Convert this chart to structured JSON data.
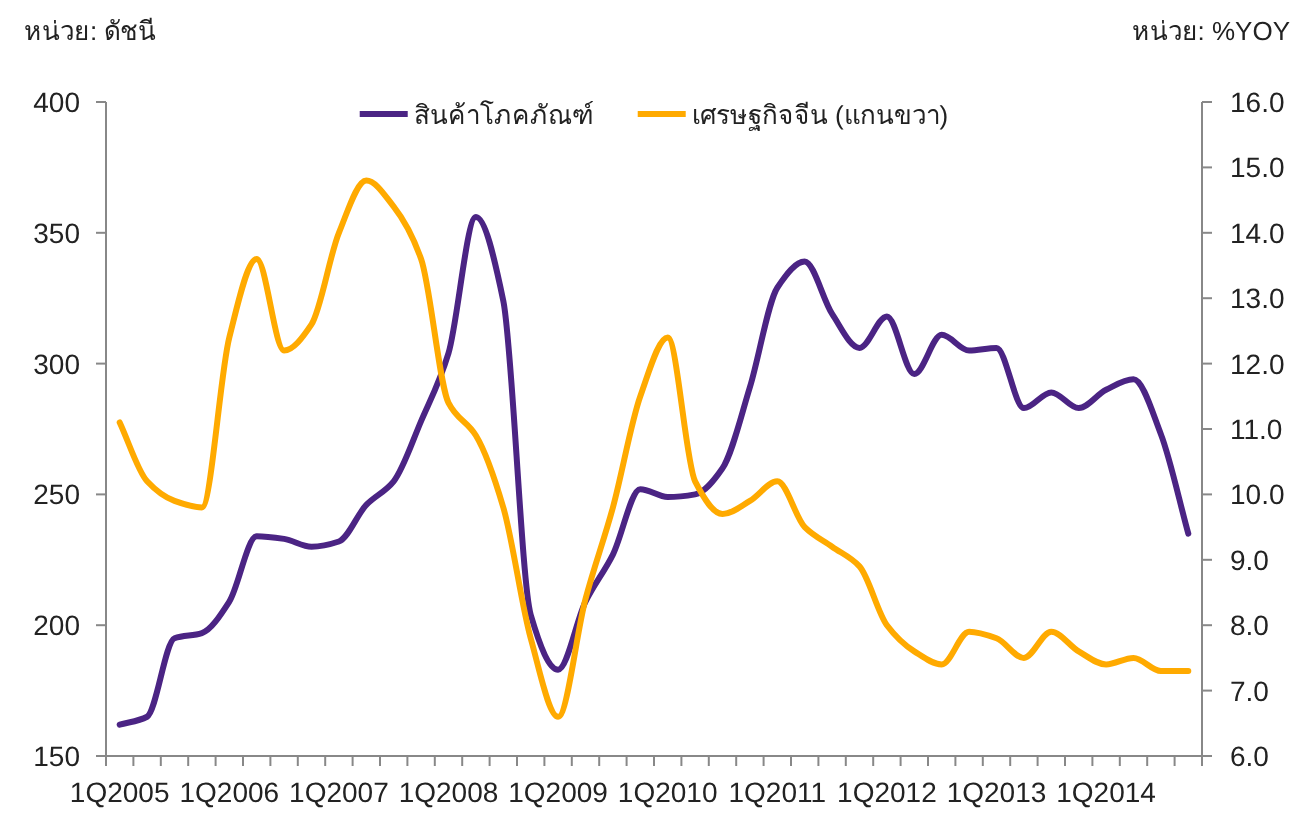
{
  "chart_data": {
    "type": "line",
    "ylabel": "หน่วย: ดัชนี",
    "y2label": "หน่วย: %YOY",
    "legend": "top",
    "categories": [
      "1Q2005",
      null,
      null,
      null,
      "1Q2006",
      null,
      null,
      null,
      "1Q2007",
      null,
      null,
      null,
      "1Q2008",
      null,
      null,
      null,
      "1Q2009",
      null,
      null,
      null,
      "1Q2010",
      null,
      null,
      null,
      "1Q2011",
      null,
      null,
      null,
      "1Q2012",
      null,
      null,
      null,
      "1Q2013",
      null,
      null,
      null,
      "1Q2014",
      null,
      null,
      null
    ],
    "ylim": [
      150,
      400
    ],
    "yticks": [
      150,
      200,
      250,
      300,
      350,
      400
    ],
    "y2lim": [
      6,
      16
    ],
    "y2ticks": [
      {
        "value": 6,
        "label": "6.0"
      },
      {
        "value": 7,
        "label": "7.0"
      },
      {
        "value": 8,
        "label": "8.0"
      },
      {
        "value": 9,
        "label": "9.0"
      },
      {
        "value": 10,
        "label": "10.0"
      },
      {
        "value": 11,
        "label": "11.0"
      },
      {
        "value": 12,
        "label": "12.0"
      },
      {
        "value": 13,
        "label": "13.0"
      },
      {
        "value": 14,
        "label": "14.0"
      },
      {
        "value": 15,
        "label": "15.0"
      },
      {
        "value": 16,
        "label": "16.0"
      }
    ],
    "series": [
      {
        "name": "สินค้าโภคภัณฑ์",
        "color": "#4b2484",
        "values": [
          162,
          165,
          195,
          197,
          209,
          234,
          233,
          230,
          232,
          246,
          255,
          278,
          304,
          356,
          324,
          204,
          183,
          209,
          227,
          252,
          249,
          250,
          260,
          291,
          329,
          339,
          319,
          306,
          318,
          296,
          311,
          305,
          306,
          283,
          289,
          283,
          290,
          294,
          273,
          235
        ]
      },
      {
        "name": "เศรษฐกิจจีน (แกนขวา)",
        "color": "#ffaa00",
        "axis": "y2",
        "values": [
          11.1,
          10.2,
          9.9,
          9.8,
          12.4,
          13.6,
          12.2,
          12.6,
          14.0,
          14.8,
          14.4,
          13.6,
          11.4,
          10.9,
          9.8,
          7.8,
          6.6,
          8.4,
          9.8,
          11.5,
          12.4,
          10.2,
          9.7,
          9.9,
          10.2,
          9.5,
          9.2,
          8.9,
          8.0,
          7.6,
          7.4,
          7.9,
          7.8,
          7.5,
          7.9,
          7.6,
          7.4,
          7.5,
          7.3,
          7.3
        ]
      }
    ]
  }
}
